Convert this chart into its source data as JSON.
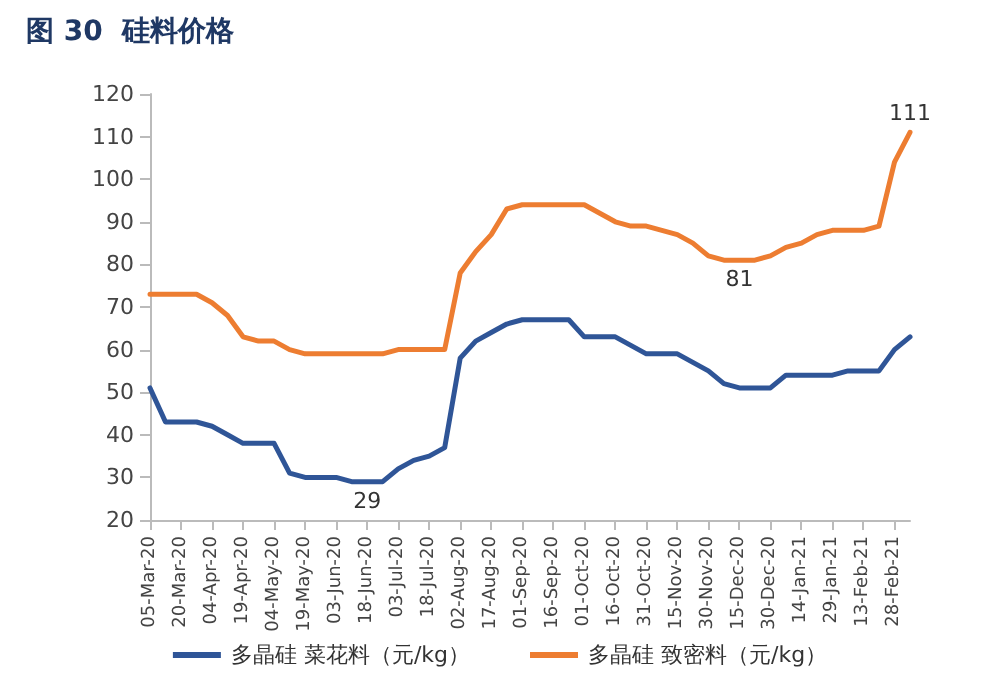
{
  "chart_data": {
    "type": "line",
    "title": "图 30  硅料价格",
    "categories": [
      "05-Mar-20",
      null,
      "20-Mar-20",
      null,
      "04-Apr-20",
      null,
      "19-Apr-20",
      null,
      "04-May-20",
      null,
      "19-May-20",
      null,
      "03-Jun-20",
      null,
      "18-Jun-20",
      null,
      "03-Jul-20",
      null,
      "18-Jul-20",
      null,
      "02-Aug-20",
      null,
      "17-Aug-20",
      null,
      "01-Sep-20",
      null,
      "16-Sep-20",
      null,
      "01-Oct-20",
      null,
      "16-Oct-20",
      null,
      "31-Oct-20",
      null,
      "15-Nov-20",
      null,
      "30-Nov-20",
      null,
      "15-Dec-20",
      null,
      "30-Dec-20",
      null,
      "14-Jan-21",
      null,
      "29-Jan-21",
      null,
      "13-Feb-21",
      null,
      "28-Feb-21",
      null
    ],
    "series": [
      {
        "name": "多晶硅 菜花料（元/kg）",
        "color": "#2f5597",
        "values": [
          51,
          43,
          43,
          43,
          42,
          40,
          38,
          38,
          38,
          31,
          30,
          30,
          30,
          29,
          29,
          29,
          32,
          34,
          35,
          37,
          58,
          62,
          64,
          66,
          67,
          67,
          67,
          67,
          63,
          63,
          63,
          61,
          59,
          59,
          59,
          57,
          55,
          52,
          51,
          51,
          51,
          54,
          54,
          54,
          54,
          55,
          55,
          55,
          60,
          63
        ],
        "value_labels": [
          null,
          null,
          null,
          null,
          null,
          null,
          null,
          null,
          null,
          null,
          null,
          null,
          null,
          null,
          "29",
          null,
          null,
          null,
          null,
          null,
          null,
          null,
          null,
          null,
          null,
          null,
          null,
          null,
          null,
          null,
          null,
          null,
          null,
          null,
          null,
          null,
          null,
          null,
          null,
          null,
          null,
          null,
          null,
          null,
          null,
          null,
          null,
          null,
          null,
          null
        ]
      },
      {
        "name": "多晶硅 致密料（元/kg）",
        "color": "#ed7d31",
        "values": [
          73,
          73,
          73,
          73,
          71,
          68,
          63,
          62,
          62,
          60,
          59,
          59,
          59,
          59,
          59,
          59,
          60,
          60,
          60,
          60,
          78,
          83,
          87,
          93,
          94,
          94,
          94,
          94,
          94,
          92,
          90,
          89,
          89,
          88,
          87,
          85,
          82,
          81,
          81,
          81,
          82,
          84,
          85,
          87,
          88,
          88,
          88,
          89,
          104,
          111
        ],
        "value_labels": [
          null,
          null,
          null,
          null,
          null,
          null,
          null,
          null,
          null,
          null,
          null,
          null,
          null,
          null,
          null,
          null,
          null,
          null,
          null,
          null,
          null,
          null,
          null,
          null,
          null,
          null,
          null,
          null,
          null,
          null,
          null,
          null,
          null,
          null,
          null,
          null,
          null,
          null,
          "81",
          null,
          null,
          null,
          null,
          null,
          null,
          null,
          null,
          null,
          null,
          "111"
        ]
      }
    ],
    "ylim": [
      20,
      120
    ],
    "yticks": [
      20,
      30,
      40,
      50,
      60,
      70,
      80,
      90,
      100,
      110,
      120
    ],
    "grid": false,
    "legend": "bottom",
    "marker": "none",
    "line_style": "solid"
  }
}
